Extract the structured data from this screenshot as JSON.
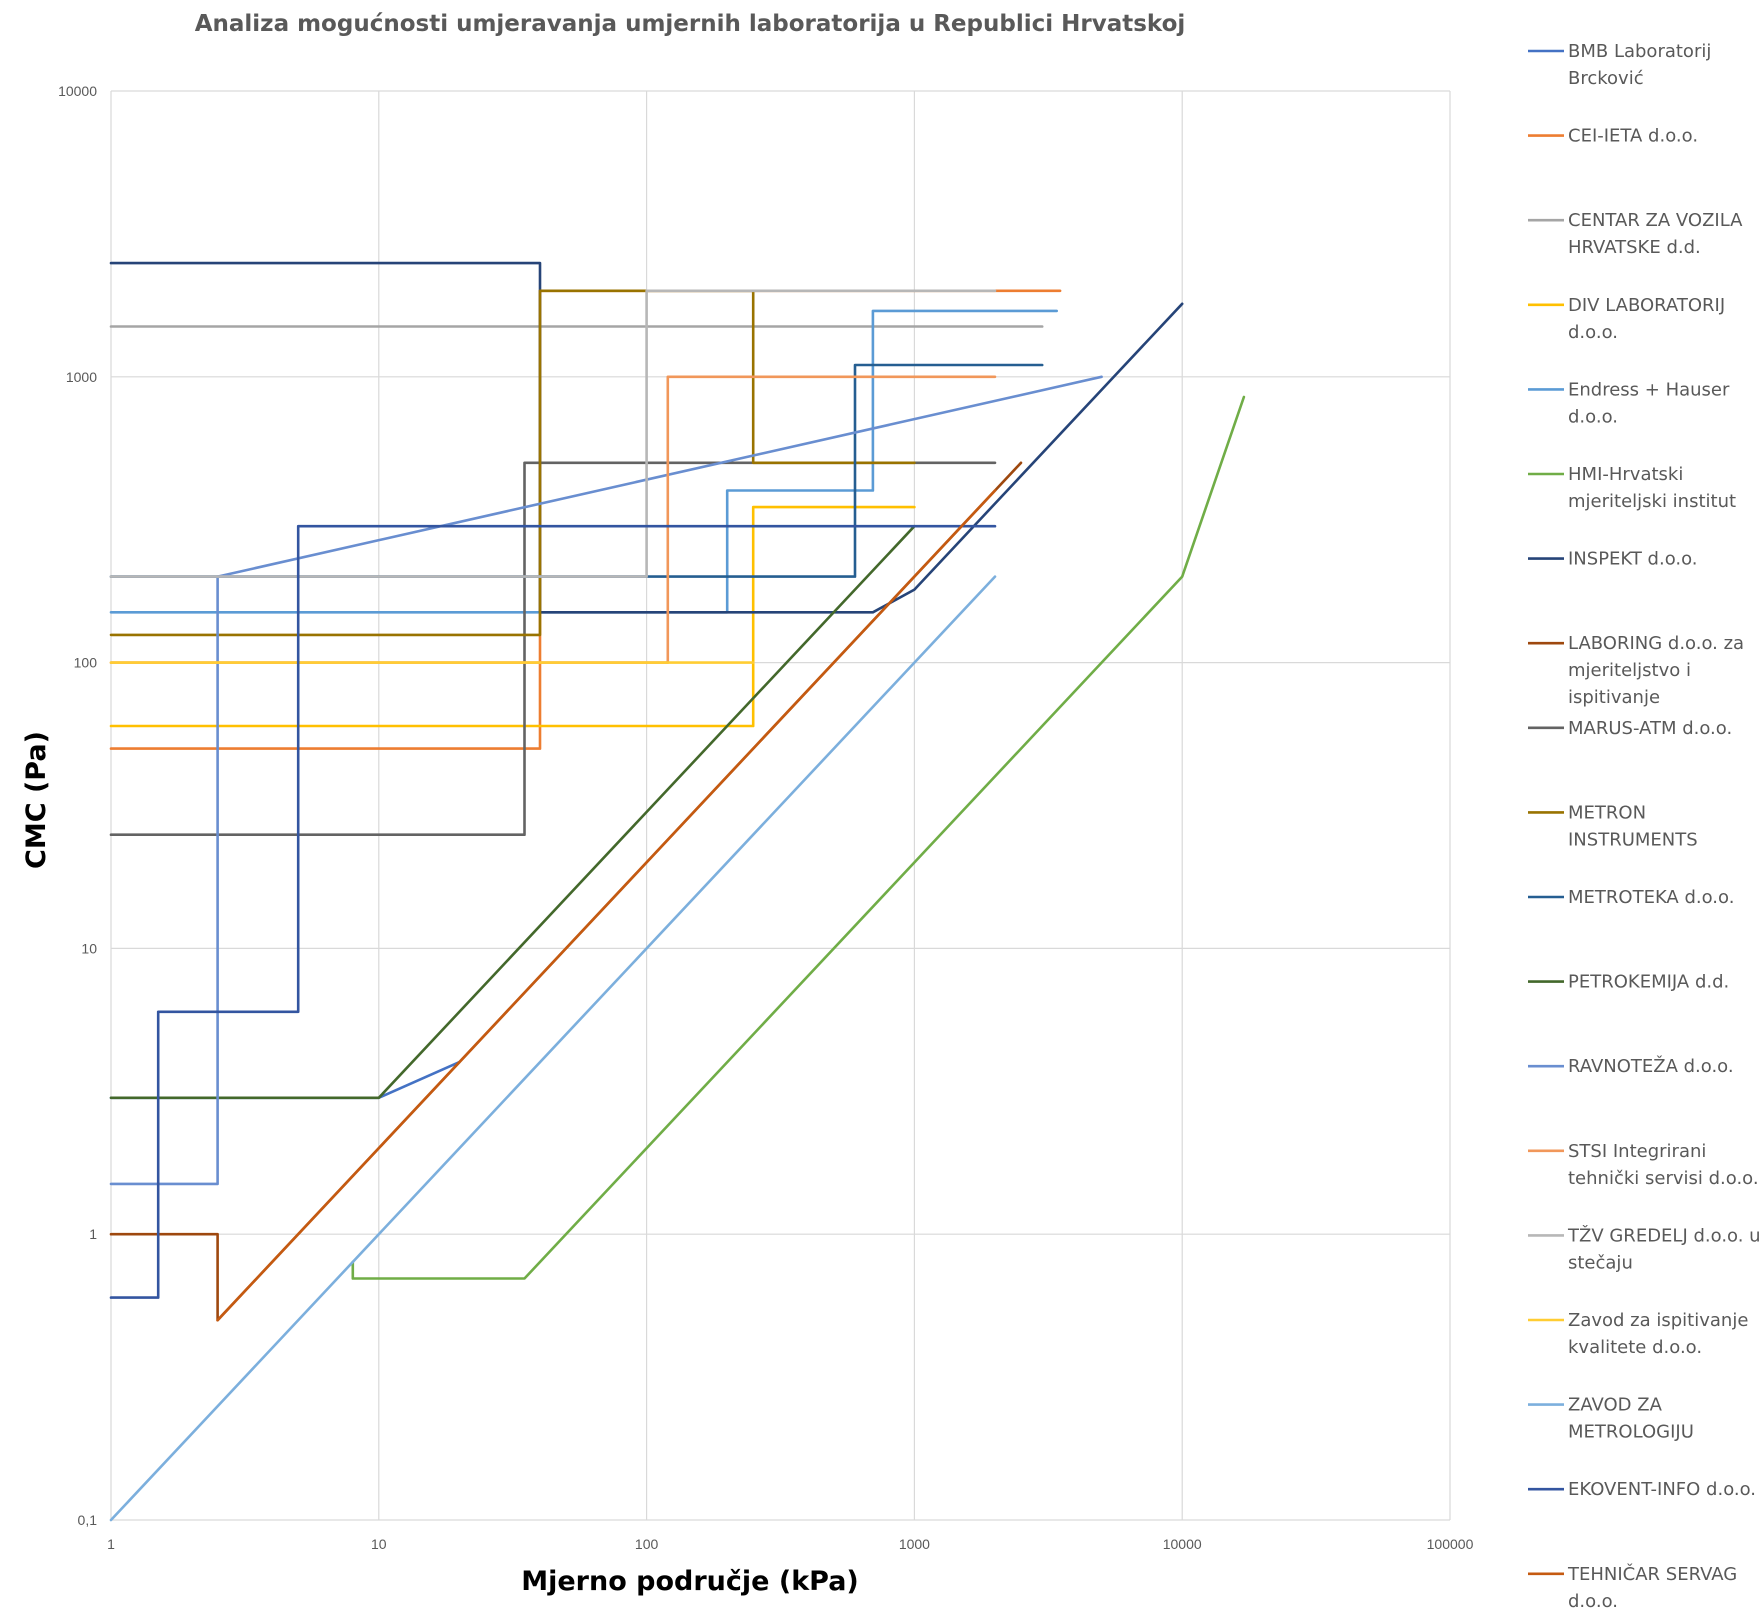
{
  "chart_data": {
    "type": "line",
    "title": "Analiza mogućnosti umjeravanja umjernih laboratorija u Republici Hrvatskoj",
    "xlabel": "Mjerno područje (kPa)",
    "ylabel": "CMC (Pa)",
    "x_scale": "log",
    "y_scale": "log",
    "xlim": [
      1,
      100000
    ],
    "ylim": [
      0.1,
      10000
    ],
    "grid": true,
    "legend_position": "right",
    "x_ticks": [
      {
        "value": 1,
        "label": "1"
      },
      {
        "value": 10,
        "label": "10"
      },
      {
        "value": 100,
        "label": "100"
      },
      {
        "value": 1000,
        "label": "1000"
      },
      {
        "value": 10000,
        "label": "10000"
      },
      {
        "value": 100000,
        "label": "100000"
      }
    ],
    "y_ticks": [
      {
        "value": 0.1,
        "label": "0,1"
      },
      {
        "value": 1,
        "label": "1"
      },
      {
        "value": 10,
        "label": "10"
      },
      {
        "value": 100,
        "label": "100"
      },
      {
        "value": 1000,
        "label": "1000"
      },
      {
        "value": 10000,
        "label": "10000"
      }
    ],
    "series": [
      {
        "name": "BMB Laboratorij Brcković",
        "legend_lines": [
          "BMB Laboratorij",
          "Brcković"
        ],
        "color": "#4472C4",
        "points": [
          [
            1,
            3
          ],
          [
            10,
            3
          ],
          [
            20,
            4
          ]
        ]
      },
      {
        "name": "CEI-IETA d.o.o.",
        "legend_lines": [
          "CEI-IETA d.o.o."
        ],
        "color": "#ED7D31",
        "points": [
          [
            1,
            50
          ],
          [
            40,
            50
          ],
          [
            40,
            2000
          ],
          [
            3500,
            2000
          ]
        ]
      },
      {
        "name": "CENTAR ZA VOZILA HRVATSKE d.d.",
        "legend_lines": [
          "CENTAR ZA VOZILA",
          "HRVATSKE d.d."
        ],
        "color": "#A5A5A5",
        "points": [
          [
            1,
            1500
          ],
          [
            3000,
            1500
          ]
        ]
      },
      {
        "name": "DIV LABORATORIJ d.o.o.",
        "legend_lines": [
          "DIV LABORATORIJ",
          "d.o.o."
        ],
        "color": "#FFC000",
        "points": [
          [
            1,
            60
          ],
          [
            250,
            60
          ],
          [
            250,
            350
          ],
          [
            1000,
            350
          ]
        ]
      },
      {
        "name": "Endress + Hauser d.o.o.",
        "legend_lines": [
          "Endress + Hauser",
          "d.o.o."
        ],
        "color": "#5B9BD5",
        "points": [
          [
            1,
            150
          ],
          [
            200,
            150
          ],
          [
            200,
            400
          ],
          [
            700,
            400
          ],
          [
            700,
            1700
          ],
          [
            3400,
            1700
          ]
        ]
      },
      {
        "name": "HMI-Hrvatski mjeriteljski institut",
        "legend_lines": [
          "HMI-Hrvatski",
          "mjeriteljski institut"
        ],
        "color": "#70AD47",
        "points": [
          [
            8,
            0.8
          ],
          [
            8,
            0.7
          ],
          [
            35,
            0.7
          ],
          [
            10000,
            200
          ],
          [
            17000,
            850
          ]
        ]
      },
      {
        "name": "INSPEKT d.o.o.",
        "legend_lines": [
          "INSPEKT d.o.o."
        ],
        "color": "#264478",
        "points": [
          [
            1,
            2500
          ],
          [
            40,
            2500
          ],
          [
            40,
            150
          ],
          [
            700,
            150
          ],
          [
            1000,
            180
          ],
          [
            10000,
            1800
          ]
        ]
      },
      {
        "name": "LABORING d.o.o. za mjeriteljstvo i ispitivanje",
        "legend_lines": [
          "LABORING d.o.o. za",
          "mjeriteljstvo i",
          "ispitivanje"
        ],
        "color": "#9E480E",
        "points": [
          [
            1,
            1
          ],
          [
            2.5,
            1
          ],
          [
            2.5,
            0.5
          ],
          [
            2500,
            500
          ]
        ]
      },
      {
        "name": "MARUS-ATM d.o.o.",
        "legend_lines": [
          "MARUS-ATM d.o.o."
        ],
        "color": "#636363",
        "points": [
          [
            1,
            25
          ],
          [
            35,
            25
          ],
          [
            35,
            500
          ],
          [
            2000,
            500
          ]
        ]
      },
      {
        "name": "METRON INSTRUMENTS",
        "legend_lines": [
          "METRON",
          "INSTRUMENTS"
        ],
        "color": "#997300",
        "points": [
          [
            1,
            125
          ],
          [
            40,
            125
          ],
          [
            40,
            2000
          ],
          [
            250,
            2000
          ],
          [
            250,
            500
          ],
          [
            1000,
            500
          ]
        ]
      },
      {
        "name": "METROTEKA d.o.o.",
        "legend_lines": [
          "METROTEKA d.o.o."
        ],
        "color": "#255E91",
        "points": [
          [
            1,
            200
          ],
          [
            600,
            200
          ],
          [
            600,
            1100
          ],
          [
            3000,
            1100
          ]
        ]
      },
      {
        "name": "PETROKEMIJA d.d.",
        "legend_lines": [
          "PETROKEMIJA d.d."
        ],
        "color": "#43682B",
        "points": [
          [
            1,
            3
          ],
          [
            10,
            3
          ],
          [
            1000,
            300
          ]
        ]
      },
      {
        "name": "RAVNOTEŽA d.o.o.",
        "legend_lines": [
          "RAVNOTEŽA d.o.o."
        ],
        "color": "#698ED0",
        "points": [
          [
            1,
            1.5
          ],
          [
            2.5,
            1.5
          ],
          [
            2.5,
            200
          ],
          [
            5000,
            1000
          ]
        ]
      },
      {
        "name": "STSI Integrirani tehnički servisi d.o.o.",
        "legend_lines": [
          "STSI Integrirani",
          "tehnički servisi d.o.o."
        ],
        "color": "#F1975A",
        "points": [
          [
            1,
            100
          ],
          [
            120,
            100
          ],
          [
            120,
            1000
          ],
          [
            2000,
            1000
          ]
        ]
      },
      {
        "name": "TŽV GREDELJ d.o.o. u stečaju",
        "legend_lines": [
          "TŽV GREDELJ d.o.o. u",
          "stečaju"
        ],
        "color": "#B7B7B7",
        "points": [
          [
            1,
            200
          ],
          [
            100,
            200
          ],
          [
            100,
            2000
          ],
          [
            2000,
            2000
          ]
        ]
      },
      {
        "name": "Zavod za ispitivanje kvalitete d.o.o.",
        "legend_lines": [
          "Zavod za ispitivanje",
          "kvalitete d.o.o."
        ],
        "color": "#FFCD33",
        "points": [
          [
            1,
            100
          ],
          [
            250,
            100
          ]
        ]
      },
      {
        "name": "ZAVOD ZA METROLOGIJU",
        "legend_lines": [
          "ZAVOD ZA",
          "METROLOGIJU"
        ],
        "color": "#7CAFDD",
        "points": [
          [
            1,
            0.1
          ],
          [
            2000,
            200
          ]
        ]
      },
      {
        "name": "EKOVENT-INFO d.o.o.",
        "legend_lines": [
          "EKOVENT-INFO d.o.o."
        ],
        "color": "#3355A0",
        "points": [
          [
            1,
            0.6
          ],
          [
            1.5,
            0.6
          ],
          [
            1.5,
            6
          ],
          [
            5,
            6
          ],
          [
            5,
            300
          ],
          [
            2000,
            300
          ]
        ]
      },
      {
        "name": "TEHNIČAR SERVAG d.o.o.",
        "legend_lines": [
          "TEHNIČAR SERVAG",
          "d.o.o."
        ],
        "color": "#C55A11",
        "points": [
          [
            2.5,
            0.5
          ],
          [
            2000,
            400
          ]
        ]
      }
    ]
  }
}
